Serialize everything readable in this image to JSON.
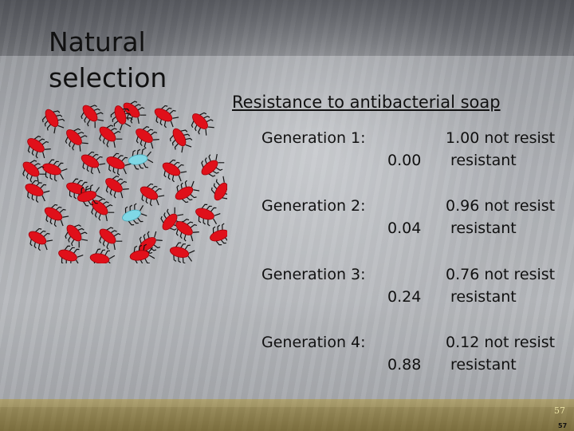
{
  "slide": {
    "title": "Natural selection",
    "subtitle": "Resistance to antibacterial soap",
    "generations": [
      {
        "label": "Generation 1:",
        "frequency": "0.00",
        "line1": "1.00 not resist",
        "line2": "resistant"
      },
      {
        "label": "Generation 2:",
        "frequency": "0.04",
        "line1": "0.96 not resist",
        "line2": "resistant"
      },
      {
        "label": "Generation 3:",
        "frequency": "0.24",
        "line1": "0.76 not resist",
        "line2": "resistant"
      },
      {
        "label": "Generation 4:",
        "frequency": "0.88",
        "line1": "0.12 not resist",
        "line2": "resistant"
      }
    ],
    "page_number": "57",
    "page_number_small": "57"
  },
  "colors": {
    "bug_normal": "#e0101a",
    "bug_resistant": "#7fd8e6"
  },
  "illustration": {
    "name": "bacteria-cluster",
    "counts": {
      "red": 38,
      "cyan": 2
    }
  }
}
